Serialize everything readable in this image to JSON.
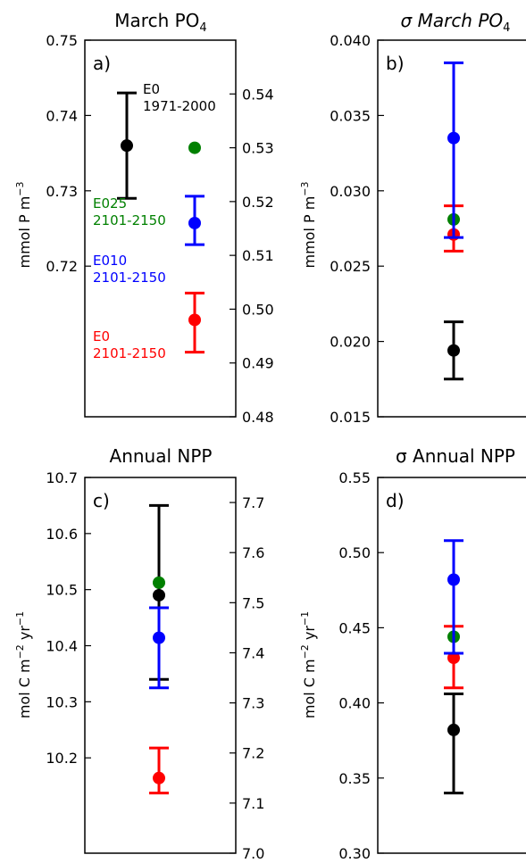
{
  "colors": {
    "E0_1971_2000": "#000000",
    "E025_2101_2150": "#008000",
    "E010_2101_2150": "#0000ff",
    "E0_2101_2150": "#ff0000"
  },
  "chart_data": [
    {
      "id": "a",
      "type": "scatter",
      "letter": "a)",
      "title": "March PO",
      "title_sub": "4",
      "ylabel": "mmol P m",
      "ylabel_sup": "−3",
      "left_axis": {
        "ylim": [
          0.7,
          0.75
        ],
        "tick_values": [
          0.72,
          0.73,
          0.74,
          0.75
        ],
        "tick_labels": [
          "0.72",
          "0.73",
          "0.74",
          "0.75"
        ]
      },
      "right_axis": {
        "ylim": [
          0.48,
          0.55
        ],
        "tick_values": [
          0.48,
          0.49,
          0.5,
          0.51,
          0.52,
          0.53,
          0.54
        ],
        "tick_labels": [
          "0.48",
          "0.49",
          "0.50",
          "0.51",
          "0.52",
          "0.53",
          "0.54"
        ]
      },
      "series": [
        {
          "name": "E0 1971-2000",
          "color": "#000000",
          "axis": "left",
          "value": 0.736,
          "err_low": 0.729,
          "err_high": 0.743
        },
        {
          "name": "E025 2101-2150",
          "color": "#008000",
          "axis": "right",
          "value": 0.53,
          "err_low": null,
          "err_high": null
        },
        {
          "name": "E010 2101-2150",
          "color": "#0000ff",
          "axis": "right",
          "value": 0.516,
          "err_low": 0.512,
          "err_high": 0.521
        },
        {
          "name": "E0 2101-2150",
          "color": "#ff0000",
          "axis": "right",
          "value": 0.498,
          "err_low": 0.492,
          "err_high": 0.503
        }
      ],
      "annotations": [
        {
          "series": "E0 1971-2000",
          "lines": [
            "E0",
            "1971-2000"
          ],
          "color": "#000000"
        },
        {
          "series": "E025 2101-2150",
          "lines": [
            "E025",
            "2101-2150"
          ],
          "color": "#008000"
        },
        {
          "series": "E010 2101-2150",
          "lines": [
            "E010",
            "2101-2150"
          ],
          "color": "#0000ff"
        },
        {
          "series": "E0 2101-2150",
          "lines": [
            "E0",
            "2101-2150"
          ],
          "color": "#ff0000"
        }
      ]
    },
    {
      "id": "b",
      "type": "scatter",
      "letter": "b)",
      "title": "σ March PO",
      "title_sub": "4",
      "ylabel": "mmol P m",
      "ylabel_sup": "−3",
      "left_axis": {
        "ylim": [
          0.015,
          0.04
        ],
        "tick_values": [
          0.015,
          0.02,
          0.025,
          0.03,
          0.035,
          0.04
        ],
        "tick_labels": [
          "0.015",
          "0.020",
          "0.025",
          "0.030",
          "0.035",
          "0.040"
        ]
      },
      "series": [
        {
          "name": "E0 1971-2000",
          "color": "#000000",
          "value": 0.0194,
          "err_low": 0.0175,
          "err_high": 0.0213
        },
        {
          "name": "E0 2101-2150",
          "color": "#ff0000",
          "value": 0.0271,
          "err_low": 0.026,
          "err_high": 0.029
        },
        {
          "name": "E025 2101-2150",
          "color": "#008000",
          "value": 0.0281,
          "err_low": null,
          "err_high": null
        },
        {
          "name": "E010 2101-2150",
          "color": "#0000ff",
          "value": 0.0335,
          "err_low": 0.0269,
          "err_high": 0.0385
        }
      ]
    },
    {
      "id": "c",
      "type": "scatter",
      "letter": "c)",
      "title": "Annual NPP",
      "title_sub": "",
      "ylabel": "mol C m",
      "ylabel_sup": "−2",
      "ylabel_tail": " yr",
      "ylabel_sup2": "−1",
      "left_axis": {
        "ylim": [
          10.03,
          10.7
        ],
        "tick_values": [
          10.2,
          10.3,
          10.4,
          10.5,
          10.6,
          10.7
        ],
        "tick_labels": [
          "10.2",
          "10.3",
          "10.4",
          "10.5",
          "10.6",
          "10.7"
        ]
      },
      "right_axis": {
        "ylim": [
          7.0,
          7.75
        ],
        "tick_values": [
          7.0,
          7.1,
          7.2,
          7.3,
          7.4,
          7.5,
          7.6,
          7.7
        ],
        "tick_labels": [
          "7.0",
          "7.1",
          "7.2",
          "7.3",
          "7.4",
          "7.5",
          "7.6",
          "7.7"
        ]
      },
      "series": [
        {
          "name": "E0 1971-2000",
          "color": "#000000",
          "axis": "left",
          "value": 10.49,
          "err_low": 10.34,
          "err_high": 10.65
        },
        {
          "name": "E025 2101-2150",
          "color": "#008000",
          "axis": "right",
          "value": 7.54,
          "err_low": null,
          "err_high": null
        },
        {
          "name": "E010 2101-2150",
          "color": "#0000ff",
          "axis": "right",
          "value": 7.43,
          "err_low": 7.33,
          "err_high": 7.49
        },
        {
          "name": "E0 2101-2150",
          "color": "#ff0000",
          "axis": "right",
          "value": 7.15,
          "err_low": 7.12,
          "err_high": 7.21
        }
      ]
    },
    {
      "id": "d",
      "type": "scatter",
      "letter": "d)",
      "title": "σ Annual NPP",
      "title_sub": "",
      "ylabel": "mol C m",
      "ylabel_sup": "−2",
      "ylabel_tail": " yr",
      "ylabel_sup2": "−1",
      "left_axis": {
        "ylim": [
          0.3,
          0.55
        ],
        "tick_values": [
          0.3,
          0.35,
          0.4,
          0.45,
          0.5,
          0.55
        ],
        "tick_labels": [
          "0.30",
          "0.35",
          "0.40",
          "0.45",
          "0.50",
          "0.55"
        ]
      },
      "series": [
        {
          "name": "E0 1971-2000",
          "color": "#000000",
          "value": 0.382,
          "err_low": 0.34,
          "err_high": 0.406
        },
        {
          "name": "E0 2101-2150",
          "color": "#ff0000",
          "value": 0.43,
          "err_low": 0.41,
          "err_high": 0.451
        },
        {
          "name": "E025 2101-2150",
          "color": "#008000",
          "value": 0.444,
          "err_low": null,
          "err_high": null
        },
        {
          "name": "E010 2101-2150",
          "color": "#0000ff",
          "value": 0.482,
          "err_low": 0.433,
          "err_high": 0.508
        }
      ]
    }
  ]
}
